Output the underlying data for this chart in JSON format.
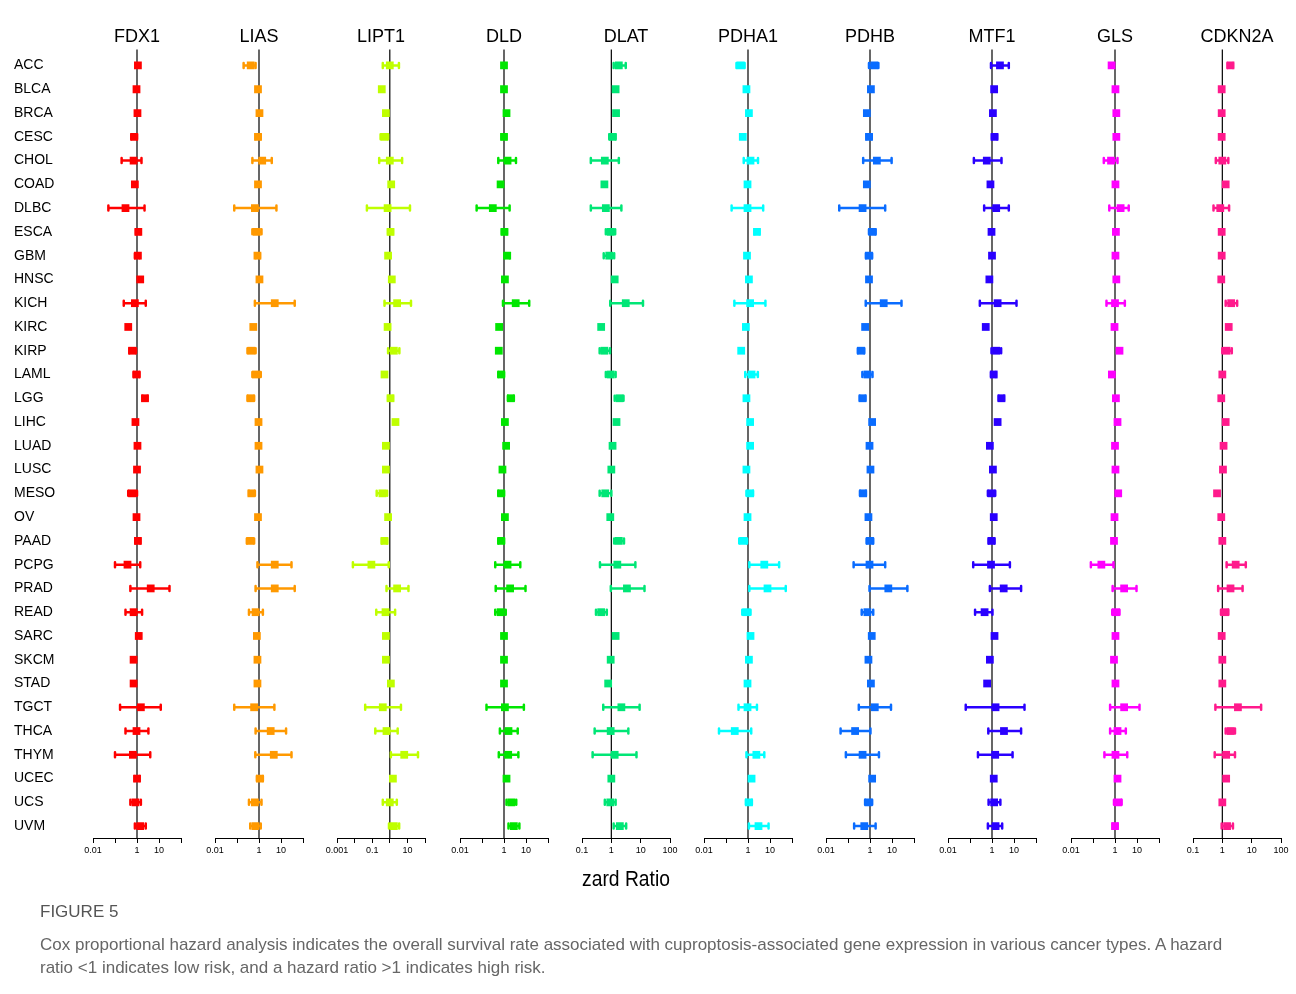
{
  "chart_data": [
    {
      "type": "scatter",
      "title": "FDX1",
      "orientation": "horizontal",
      "log": "x",
      "marker": "square",
      "color": "#ff0000",
      "categories": [
        "ACC",
        "BLCA",
        "BRCA",
        "CESC",
        "CHOL",
        "COAD",
        "DLBC",
        "ESCA",
        "GBM",
        "HNSC",
        "KICH",
        "KIRC",
        "KIRP",
        "LAML",
        "LGG",
        "LIHC",
        "LUAD",
        "LUSC",
        "MESO",
        "OV",
        "PAAD",
        "PCPG",
        "PRAD",
        "READ",
        "SARC",
        "SKCM",
        "STAD",
        "TGCT",
        "THCA",
        "THYM",
        "UCEC",
        "UCS",
        "UVM"
      ],
      "values": [
        1.1,
        0.95,
        1.05,
        0.75,
        0.7,
        0.8,
        0.3,
        1.15,
        1.1,
        1.4,
        0.8,
        0.4,
        0.6,
        0.95,
        2.3,
        0.85,
        1.05,
        1.0,
        0.6,
        0.95,
        1.1,
        0.37,
        4.2,
        0.7,
        1.2,
        0.7,
        0.7,
        1.5,
        0.95,
        0.65,
        1.0,
        0.85,
        1.4
      ],
      "errors": [
        null,
        null,
        null,
        [
          0.55,
          1.0
        ],
        [
          0.2,
          1.6
        ],
        null,
        [
          0.05,
          2.2
        ],
        [
          0.9,
          1.4
        ],
        [
          0.8,
          1.3
        ],
        null,
        [
          0.25,
          2.5
        ],
        null,
        [
          0.45,
          0.9
        ],
        [
          0.7,
          1.3
        ],
        [
          1.8,
          3.0
        ],
        null,
        null,
        null,
        [
          0.4,
          1.0
        ],
        null,
        [
          0.85,
          1.4
        ],
        [
          0.1,
          1.4
        ],
        [
          0.5,
          30
        ],
        [
          0.3,
          1.7
        ],
        [
          0.95,
          1.4
        ],
        null,
        null,
        [
          0.17,
          12
        ],
        [
          0.3,
          3.3
        ],
        [
          0.1,
          4
        ],
        [
          0.8,
          1.3
        ],
        [
          0.5,
          1.5
        ],
        [
          0.8,
          2.5
        ]
      ],
      "xlim": [
        0.01,
        100
      ],
      "xticks": [
        0.01,
        {
          "value": 0.1,
          "label": null
        },
        1,
        10,
        {
          "value": 100,
          "label": null
        }
      ],
      "ref_lines": [
        {
          "axis": "x",
          "value": 1,
          "color": "#000000"
        }
      ],
      "annotations": [
        "FIGURE 5",
        "Cox proportional hazard analysis indicates the overall survival rate associated with cuproptosis-associated gene expression in various cancer types. A hazard ratio <1 indicates low risk, and a hazard ratio >1 indicates high risk."
      ]
    },
    {
      "type": "scatter",
      "title": "LIAS",
      "orientation": "horizontal",
      "log": "x",
      "marker": "square",
      "color": "#ff9900",
      "tick_labels": "x",
      "categories": [
        null,
        null,
        null,
        null,
        null,
        null,
        null,
        null,
        null,
        null,
        null,
        null,
        null,
        null,
        null,
        null,
        null,
        null,
        null,
        null,
        null,
        null,
        null,
        null,
        null,
        null,
        null,
        null,
        null,
        null,
        null,
        null,
        null
      ],
      "values": [
        0.42,
        0.9,
        1.05,
        0.9,
        1.4,
        0.9,
        0.65,
        0.8,
        0.85,
        1.05,
        5.2,
        0.55,
        0.45,
        0.75,
        0.42,
        0.95,
        0.95,
        1.05,
        0.45,
        0.9,
        0.4,
        5.2,
        5.2,
        0.7,
        0.8,
        0.85,
        0.85,
        0.6,
        3.4,
        4.7,
        1.1,
        0.65,
        0.68
      ],
      "errors": [
        [
          0.2,
          0.7
        ],
        null,
        null,
        [
          0.7,
          1.2
        ],
        [
          0.5,
          3.8
        ],
        null,
        [
          0.075,
          6.2
        ],
        [
          0.5,
          1.3
        ],
        [
          0.7,
          1.1
        ],
        null,
        [
          0.65,
          42
        ],
        null,
        [
          0.3,
          0.7
        ],
        [
          0.5,
          1.2
        ],
        [
          0.3,
          0.6
        ],
        null,
        null,
        null,
        [
          0.35,
          0.65
        ],
        null,
        [
          0.28,
          0.6
        ],
        [
          0.85,
          30
        ],
        [
          0.7,
          42
        ],
        [
          0.35,
          1.5
        ],
        null,
        null,
        null,
        [
          0.075,
          5
        ],
        [
          0.7,
          17
        ],
        [
          0.68,
          30
        ],
        [
          0.8,
          1.5
        ],
        [
          0.35,
          1.3
        ],
        [
          0.4,
          1.2
        ]
      ],
      "xlim": [
        0.01,
        100
      ],
      "xticks": [
        0.01,
        {
          "value": 0.1,
          "label": null
        },
        1,
        10,
        {
          "value": 100,
          "label": null
        }
      ],
      "ref_lines": [
        {
          "axis": "x",
          "value": 1,
          "color": "#000000"
        }
      ]
    },
    {
      "type": "scatter",
      "title": "LIPT1",
      "orientation": "horizontal",
      "log": "x",
      "marker": "square",
      "color": "#bfff00",
      "tick_labels": "x",
      "categories": [
        null,
        null,
        null,
        null,
        null,
        null,
        null,
        null,
        null,
        null,
        null,
        null,
        null,
        null,
        null,
        null,
        null,
        null,
        null,
        null,
        null,
        null,
        null,
        null,
        null,
        null,
        null,
        null,
        null,
        null,
        null,
        null,
        null
      ],
      "values": [
        1.0,
        0.35,
        0.6,
        0.5,
        1.0,
        1.2,
        0.75,
        1.1,
        0.8,
        1.3,
        2.6,
        0.75,
        1.7,
        0.5,
        1.1,
        2.1,
        0.6,
        0.6,
        0.38,
        0.8,
        0.5,
        0.09,
        2.6,
        0.57,
        0.6,
        0.6,
        1.15,
        0.4,
        0.65,
        6.6,
        1.5,
        1.0,
        1.7
      ],
      "errors": [
        [
          0.4,
          3.3
        ],
        null,
        null,
        [
          0.3,
          0.8
        ],
        [
          0.25,
          5
        ],
        null,
        [
          0.05,
          14
        ],
        [
          0.8,
          1.5
        ],
        null,
        null,
        [
          0.5,
          16
        ],
        null,
        [
          0.8,
          3.5
        ],
        null,
        [
          0.8,
          1.5
        ],
        null,
        null,
        null,
        [
          0.18,
          0.7
        ],
        null,
        [
          0.35,
          0.7
        ],
        [
          0.008,
          0.87
        ],
        [
          0.65,
          11.5
        ],
        [
          0.17,
          2
        ],
        null,
        null,
        null,
        [
          0.04,
          4.3
        ],
        [
          0.15,
          2.8
        ],
        [
          1.15,
          40
        ],
        null,
        [
          0.4,
          2.5
        ],
        [
          0.9,
          3.4
        ]
      ],
      "xlim": [
        0.001,
        100
      ],
      "xticks": [
        0.001,
        {
          "value": 0.01,
          "label": null
        },
        0.1,
        {
          "value": 1,
          "label": null
        },
        10,
        {
          "value": 100,
          "label": null
        }
      ],
      "ref_lines": [
        {
          "axis": "x",
          "value": 1,
          "color": "#000000"
        }
      ]
    },
    {
      "type": "scatter",
      "title": "DLD",
      "orientation": "horizontal",
      "log": "x",
      "marker": "square",
      "color": "#00e600",
      "tick_labels": "x",
      "categories": [
        null,
        null,
        null,
        null,
        null,
        null,
        null,
        null,
        null,
        null,
        null,
        null,
        null,
        null,
        null,
        null,
        null,
        null,
        null,
        null,
        null,
        null,
        null,
        null,
        null,
        null,
        null,
        null,
        null,
        null,
        null,
        null,
        null
      ],
      "values": [
        1.0,
        1.0,
        1.3,
        1.0,
        1.45,
        0.7,
        0.31,
        1.05,
        1.4,
        1.1,
        3.4,
        0.6,
        0.58,
        0.75,
        2.05,
        1.1,
        1.25,
        0.85,
        0.75,
        1.1,
        0.75,
        1.45,
        1.9,
        0.7,
        1.0,
        1.0,
        1.0,
        1.1,
        1.6,
        1.55,
        1.3,
        2.15,
        2.8
      ],
      "errors": [
        null,
        null,
        null,
        [
          0.8,
          1.25
        ],
        [
          0.55,
          3.5
        ],
        null,
        [
          0.057,
          1.8
        ],
        [
          0.8,
          1.35
        ],
        [
          1.05,
          1.8
        ],
        null,
        [
          0.9,
          14
        ],
        null,
        null,
        [
          0.55,
          1.0
        ],
        [
          1.5,
          2.8
        ],
        null,
        null,
        null,
        [
          0.55,
          1.0
        ],
        null,
        [
          0.55,
          1.0
        ],
        [
          0.4,
          5.5
        ],
        [
          0.42,
          9.5
        ],
        [
          0.4,
          1.2
        ],
        null,
        null,
        null,
        [
          0.16,
          8
        ],
        [
          0.65,
          4.2
        ],
        [
          0.58,
          4.5
        ],
        null,
        [
          1.3,
          3.6
        ],
        [
          1.6,
          5
        ]
      ],
      "xlim": [
        0.01,
        100
      ],
      "xticks": [
        0.01,
        {
          "value": 0.1,
          "label": null
        },
        1,
        10,
        {
          "value": 100,
          "label": null
        }
      ],
      "ref_lines": [
        {
          "axis": "x",
          "value": 1,
          "color": "#000000"
        }
      ]
    },
    {
      "type": "scatter",
      "title": "DLAT",
      "orientation": "horizontal",
      "log": "x",
      "marker": "square",
      "color": "#00e676",
      "tick_labels": "x",
      "xlabel": "zard Ratio",
      "categories": [
        null,
        null,
        null,
        null,
        null,
        null,
        null,
        null,
        null,
        null,
        null,
        null,
        null,
        null,
        null,
        null,
        null,
        null,
        null,
        null,
        null,
        null,
        null,
        null,
        null,
        null,
        null,
        null,
        null,
        null,
        null,
        null,
        null
      ],
      "values": [
        1.8,
        1.4,
        1.45,
        1.1,
        0.6,
        0.58,
        0.65,
        0.95,
        0.85,
        1.3,
        3.1,
        0.45,
        0.58,
        0.95,
        1.9,
        1.5,
        1.1,
        1.0,
        0.62,
        0.92,
        1.8,
        1.6,
        3.4,
        0.45,
        1.4,
        0.95,
        0.78,
        2.2,
        0.95,
        1.3,
        1.0,
        0.92,
        1.95
      ],
      "errors": [
        [
          1.2,
          3.1
        ],
        null,
        null,
        [
          0.85,
          1.4
        ],
        [
          0.2,
          1.8
        ],
        null,
        [
          0.2,
          2.2
        ],
        [
          0.65,
          1.35
        ],
        [
          0.55,
          1.25
        ],
        null,
        [
          0.92,
          12
        ],
        null,
        [
          0.4,
          0.9
        ],
        [
          0.65,
          1.4
        ],
        [
          1.3,
          2.6
        ],
        null,
        null,
        null,
        [
          0.4,
          1.0
        ],
        null,
        [
          1.25,
          2.7
        ],
        [
          0.41,
          6.6
        ],
        [
          0.96,
          13.5
        ],
        [
          0.3,
          0.7
        ],
        null,
        null,
        null,
        [
          0.53,
          9.2
        ],
        [
          0.27,
          3.8
        ],
        [
          0.23,
          7.2
        ],
        null,
        [
          0.6,
          1.4
        ],
        [
          1.2,
          3.2
        ]
      ],
      "xlim": [
        0.1,
        100
      ],
      "xticks": [
        0.1,
        1,
        10,
        100
      ],
      "ref_lines": [
        {
          "axis": "x",
          "value": 1,
          "color": "#000000"
        }
      ]
    },
    {
      "type": "scatter",
      "title": "PDHA1",
      "orientation": "horizontal",
      "log": "x",
      "marker": "square",
      "color": "#00ffff",
      "tick_labels": "x",
      "categories": [
        null,
        null,
        null,
        null,
        null,
        null,
        null,
        null,
        null,
        null,
        null,
        null,
        null,
        null,
        null,
        null,
        null,
        null,
        null,
        null,
        null,
        null,
        null,
        null,
        null,
        null,
        null,
        null,
        null,
        null,
        null,
        null,
        null
      ],
      "values": [
        0.46,
        0.85,
        1.1,
        0.58,
        1.3,
        0.95,
        0.95,
        2.55,
        0.9,
        1.1,
        1.25,
        0.8,
        0.49,
        1.45,
        0.85,
        1.25,
        1.25,
        0.85,
        1.25,
        0.95,
        0.6,
        5.5,
        7.7,
        0.85,
        1.3,
        1.1,
        0.95,
        0.95,
        0.25,
        2.4,
        1.45,
        1.1,
        3.0
      ],
      "errors": [
        [
          0.3,
          0.7
        ],
        null,
        null,
        null,
        [
          0.64,
          2.85
        ],
        null,
        [
          0.18,
          4.9
        ],
        [
          2.0,
          3.3
        ],
        null,
        null,
        [
          0.24,
          6.2
        ],
        null,
        null,
        [
          0.75,
          2.8
        ],
        null,
        null,
        null,
        null,
        [
          0.85,
          1.7
        ],
        null,
        [
          0.4,
          0.9
        ],
        [
          1.15,
          26
        ],
        [
          1.15,
          52
        ],
        [
          0.55,
          1.3
        ],
        null,
        null,
        null,
        [
          0.37,
          2.55
        ],
        [
          0.048,
          1.4
        ],
        [
          0.85,
          5.5
        ],
        null,
        [
          0.8,
          1.5
        ],
        [
          1.1,
          8.6
        ]
      ],
      "xlim": [
        0.01,
        100
      ],
      "xticks": [
        0.01,
        {
          "value": 0.1,
          "label": null
        },
        1,
        10,
        {
          "value": 100,
          "label": null
        }
      ],
      "ref_lines": [
        {
          "axis": "x",
          "value": 1,
          "color": "#000000"
        }
      ]
    },
    {
      "type": "scatter",
      "title": "PDHB",
      "orientation": "horizontal",
      "log": "x",
      "marker": "square",
      "color": "#0a6cff",
      "tick_labels": "x",
      "categories": [
        null,
        null,
        null,
        null,
        null,
        null,
        null,
        null,
        null,
        null,
        null,
        null,
        null,
        null,
        null,
        null,
        null,
        null,
        null,
        null,
        null,
        null,
        null,
        null,
        null,
        null,
        null,
        null,
        null,
        null,
        null,
        null,
        null
      ],
      "values": [
        1.55,
        1.1,
        0.72,
        0.9,
        2.05,
        0.72,
        0.46,
        1.3,
        0.9,
        0.9,
        4.2,
        0.6,
        0.39,
        0.76,
        0.46,
        1.25,
        0.95,
        1.05,
        0.49,
        0.85,
        1.0,
        0.95,
        6.8,
        0.76,
        1.2,
        0.85,
        1.1,
        1.65,
        0.21,
        0.46,
        1.25,
        0.85,
        0.55
      ],
      "errors": [
        [
          0.9,
          2.4
        ],
        null,
        null,
        [
          0.7,
          1.2
        ],
        [
          0.49,
          9.6
        ],
        null,
        [
          0.04,
          4.9
        ],
        [
          0.9,
          1.8
        ],
        [
          0.65,
          1.25
        ],
        null,
        [
          0.64,
          27
        ],
        null,
        [
          0.28,
          0.55
        ],
        [
          0.45,
          1.3
        ],
        [
          0.34,
          0.62
        ],
        null,
        null,
        null,
        [
          0.35,
          0.65
        ],
        null,
        [
          0.7,
          1.4
        ],
        [
          0.18,
          4.9
        ],
        [
          0.95,
          50
        ],
        [
          0.42,
          1.4
        ],
        null,
        null,
        null,
        [
          0.31,
          9
        ],
        [
          0.046,
          1.05
        ],
        [
          0.08,
          2.55
        ],
        null,
        [
          0.6,
          1.25
        ],
        [
          0.19,
          1.8
        ]
      ],
      "xlim": [
        0.01,
        100
      ],
      "xticks": [
        0.01,
        {
          "value": 0.1,
          "label": null
        },
        1,
        10,
        {
          "value": 100,
          "label": null
        }
      ],
      "ref_lines": [
        {
          "axis": "x",
          "value": 1,
          "color": "#000000"
        }
      ]
    },
    {
      "type": "scatter",
      "title": "MTF1",
      "orientation": "horizontal",
      "log": "x",
      "marker": "square",
      "color": "#2a00ff",
      "tick_labels": "x",
      "categories": [
        null,
        null,
        null,
        null,
        null,
        null,
        null,
        null,
        null,
        null,
        null,
        null,
        null,
        null,
        null,
        null,
        null,
        null,
        null,
        null,
        null,
        null,
        null,
        null,
        null,
        null,
        null,
        null,
        null,
        null,
        null,
        null,
        null
      ],
      "values": [
        2.3,
        1.25,
        1.1,
        1.3,
        0.58,
        0.85,
        1.55,
        0.95,
        1.0,
        0.76,
        1.8,
        0.52,
        1.55,
        1.2,
        2.7,
        1.8,
        0.8,
        1.1,
        0.95,
        1.2,
        0.95,
        0.9,
        3.4,
        0.46,
        1.3,
        0.8,
        0.6,
        1.45,
        3.5,
        1.4,
        1.2,
        1.25,
        1.45
      ],
      "errors": [
        [
          0.9,
          5.8
        ],
        null,
        null,
        [
          1.0,
          1.7
        ],
        [
          0.15,
          2.7
        ],
        null,
        [
          0.44,
          5.8
        ],
        null,
        null,
        null,
        [
          0.28,
          13
        ],
        null,
        [
          0.95,
          2.6
        ],
        [
          0.9,
          1.5
        ],
        [
          2.0,
          3.5
        ],
        null,
        null,
        null,
        [
          0.65,
          1.4
        ],
        null,
        [
          0.7,
          1.3
        ],
        [
          0.14,
          6.5
        ],
        [
          0.8,
          21
        ],
        [
          0.17,
          1.05
        ],
        null,
        null,
        null,
        [
          0.064,
          30
        ],
        [
          0.68,
          21
        ],
        [
          0.23,
          8.6
        ],
        null,
        [
          0.7,
          2.4
        ],
        [
          0.65,
          2.9
        ]
      ],
      "xlim": [
        0.01,
        100
      ],
      "xticks": [
        0.01,
        {
          "value": 0.1,
          "label": null
        },
        1,
        10,
        {
          "value": 100,
          "label": null
        }
      ],
      "ref_lines": [
        {
          "axis": "x",
          "value": 1,
          "color": "#000000"
        }
      ]
    },
    {
      "type": "scatter",
      "title": "GLS",
      "orientation": "horizontal",
      "log": "x",
      "marker": "square",
      "color": "#ff00ff",
      "tick_labels": "x",
      "categories": [
        null,
        null,
        null,
        null,
        null,
        null,
        null,
        null,
        null,
        null,
        null,
        null,
        null,
        null,
        null,
        null,
        null,
        null,
        null,
        null,
        null,
        null,
        null,
        null,
        null,
        null,
        null,
        null,
        null,
        null,
        null,
        null,
        null
      ],
      "values": [
        0.7,
        1.05,
        1.15,
        1.15,
        0.66,
        1.05,
        1.8,
        1.1,
        1.05,
        1.15,
        1.0,
        0.95,
        1.6,
        0.72,
        1.1,
        1.3,
        1.0,
        1.05,
        1.4,
        0.95,
        0.9,
        0.24,
        2.6,
        1.1,
        1.05,
        0.9,
        1.05,
        2.6,
        1.3,
        1.05,
        1.3,
        1.4,
        1.0
      ],
      "errors": [
        null,
        null,
        null,
        null,
        [
          0.31,
          1.3
        ],
        null,
        [
          0.55,
          4.2
        ],
        null,
        null,
        null,
        [
          0.41,
          2.8
        ],
        null,
        null,
        null,
        null,
        null,
        null,
        null,
        null,
        null,
        null,
        [
          0.08,
          0.85
        ],
        [
          0.78,
          9.5
        ],
        [
          0.75,
          1.6
        ],
        null,
        null,
        null,
        [
          0.6,
          13
        ],
        [
          0.6,
          3.1
        ],
        [
          0.33,
          3.6
        ],
        null,
        [
          0.9,
          2.0
        ],
        [
          0.8,
          1.3
        ]
      ],
      "xlim": [
        0.01,
        100
      ],
      "xticks": [
        0.01,
        {
          "value": 0.1,
          "label": null
        },
        1,
        10,
        {
          "value": 100,
          "label": null
        }
      ],
      "ref_lines": [
        {
          "axis": "x",
          "value": 1,
          "color": "#000000"
        }
      ]
    },
    {
      "type": "scatter",
      "title": "CDKN2A",
      "orientation": "horizontal",
      "log": "x",
      "marker": "square",
      "color": "#ff1a8c",
      "tick_labels": "x",
      "categories": [
        null,
        null,
        null,
        null,
        null,
        null,
        null,
        null,
        null,
        null,
        null,
        null,
        null,
        null,
        null,
        null,
        null,
        null,
        null,
        null,
        null,
        null,
        null,
        null,
        null,
        null,
        null,
        null,
        null,
        null,
        null,
        null,
        null
      ],
      "values": [
        1.9,
        0.95,
        0.95,
        0.95,
        1.0,
        1.3,
        0.85,
        0.95,
        0.95,
        0.92,
        2.0,
        1.65,
        1.4,
        1.0,
        0.92,
        1.3,
        1.1,
        1.05,
        0.66,
        0.92,
        1.0,
        2.85,
        1.9,
        1.25,
        0.95,
        1.0,
        1.0,
        3.4,
        1.9,
        1.35,
        1.35,
        1.0,
        1.45
      ],
      "errors": [
        [
          1.5,
          2.3
        ],
        null,
        null,
        null,
        [
          0.6,
          1.6
        ],
        null,
        [
          0.5,
          1.7
        ],
        null,
        null,
        null,
        [
          1.3,
          3.2
        ],
        null,
        [
          1.0,
          2.1
        ],
        null,
        null,
        null,
        null,
        null,
        null,
        null,
        null,
        [
          1.4,
          6.3
        ],
        [
          0.72,
          4.9
        ],
        [
          0.9,
          1.6
        ],
        null,
        null,
        null,
        [
          0.58,
          21
        ],
        [
          1.3,
          2.7
        ],
        [
          0.55,
          2.7
        ],
        null,
        null,
        [
          0.95,
          2.3
        ]
      ],
      "xlim": [
        0.1,
        100
      ],
      "xticks": [
        0.1,
        1,
        10,
        100
      ],
      "ref_lines": [
        {
          "axis": "x",
          "value": 1,
          "color": "#000000"
        }
      ]
    }
  ]
}
